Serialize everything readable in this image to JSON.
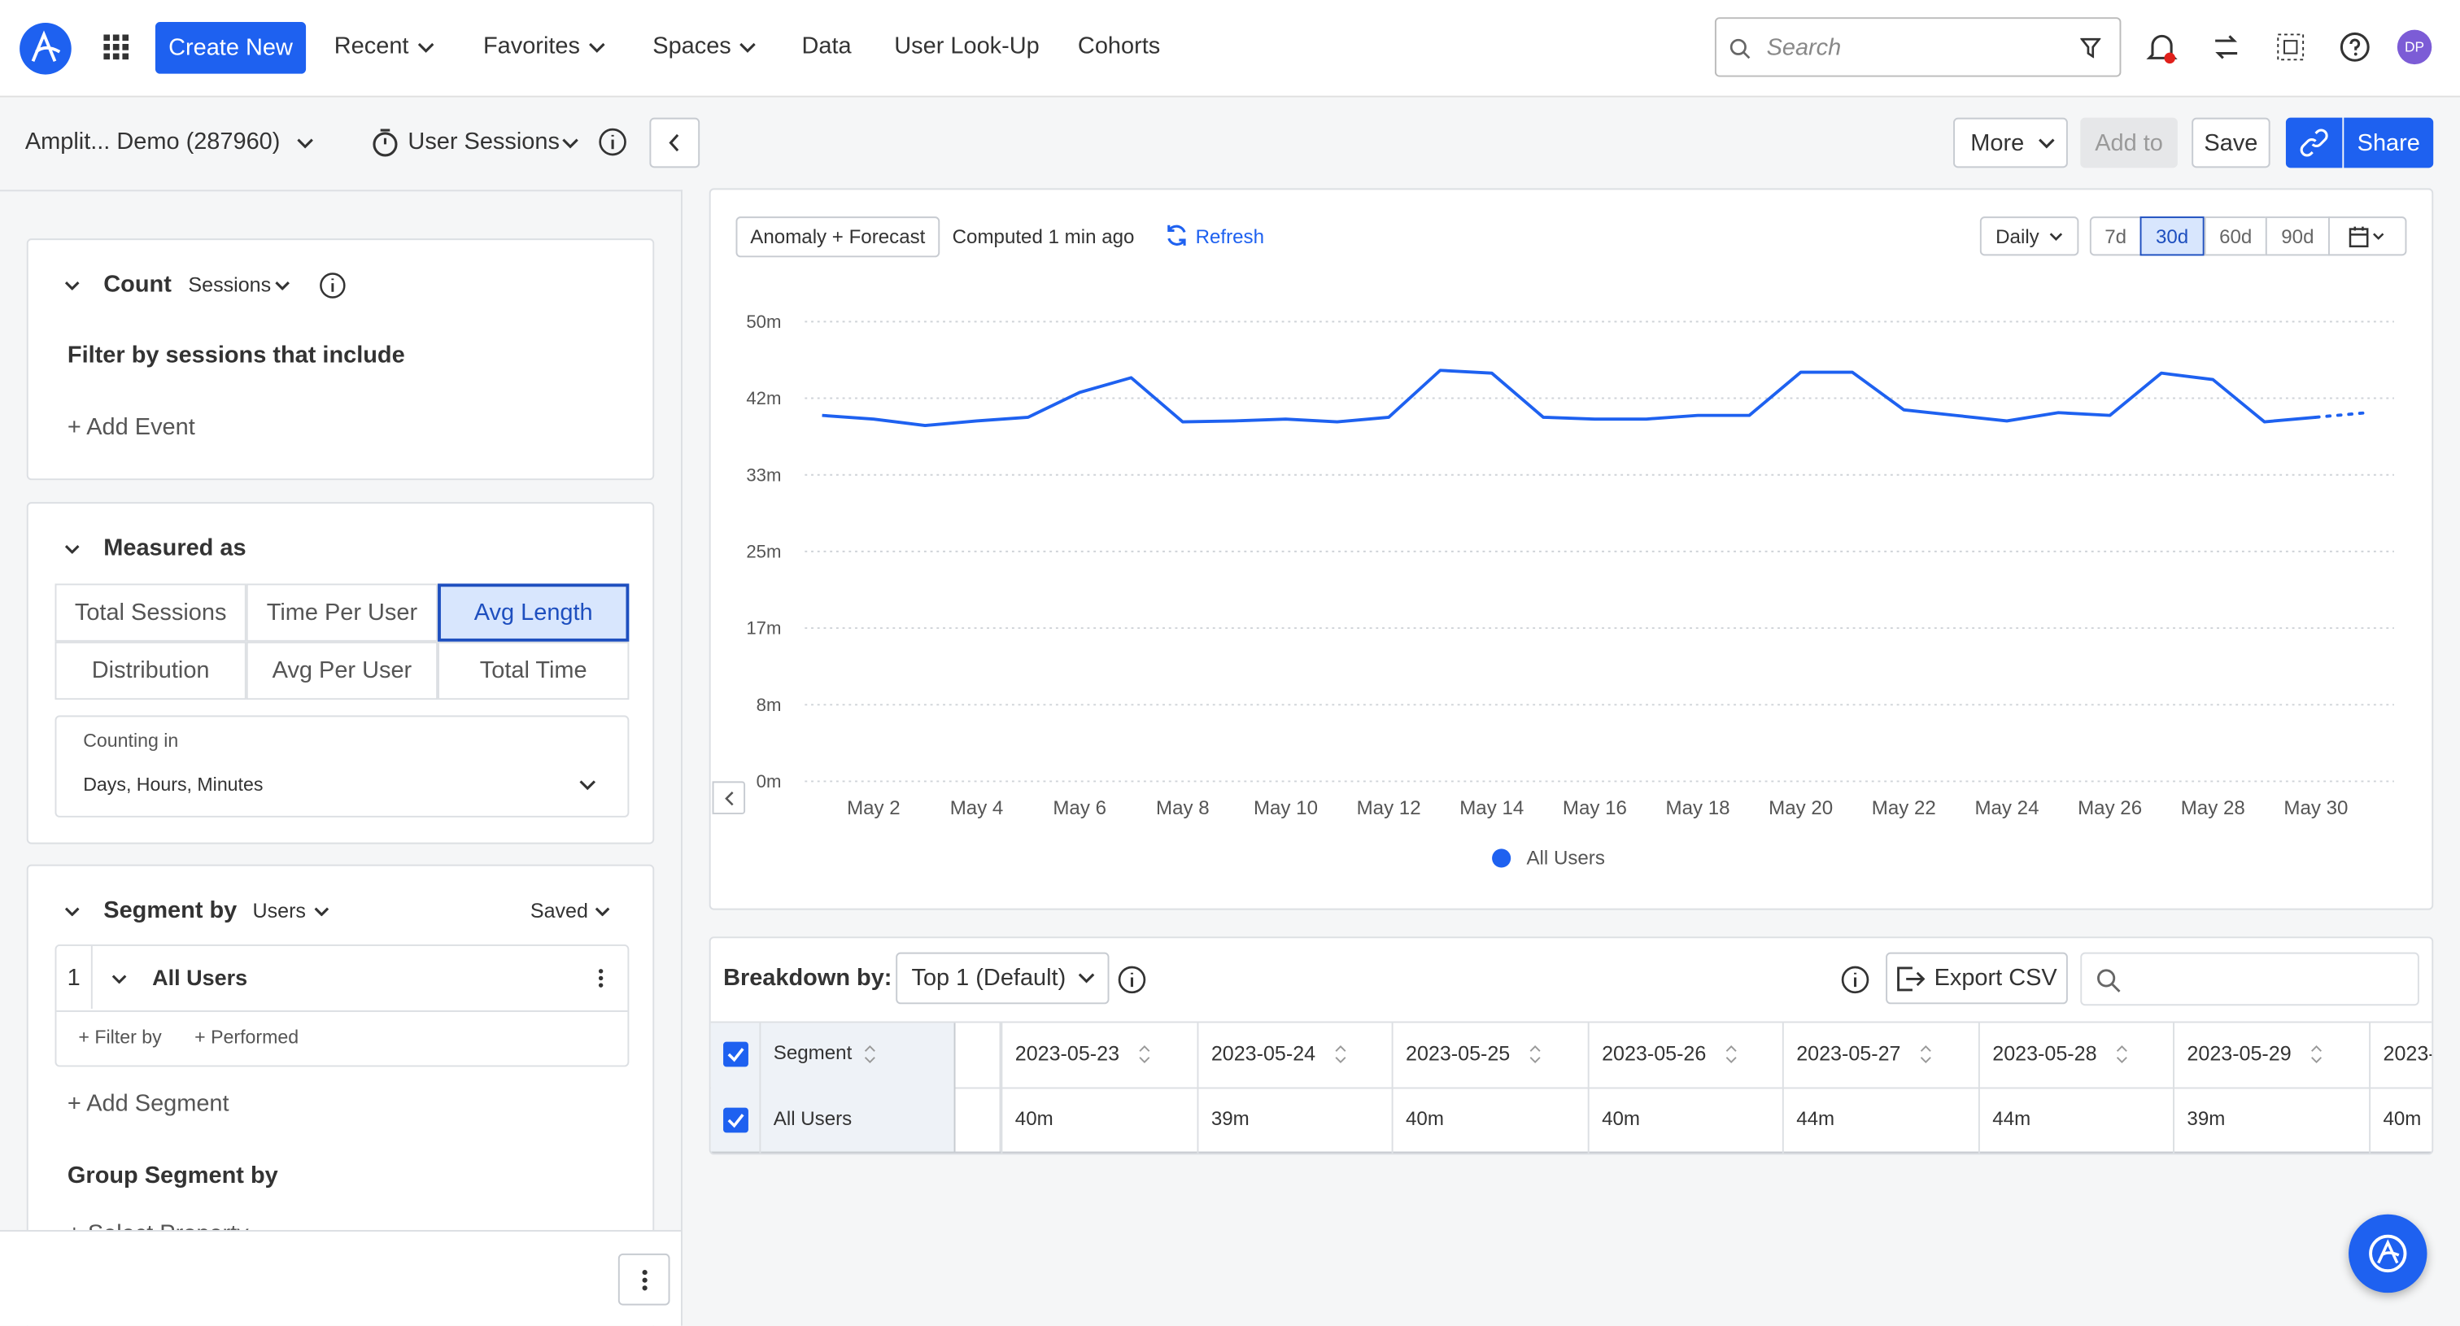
{
  "nav": {
    "items": [
      "Create New",
      "Recent",
      "Favorites",
      "Spaces",
      "Data",
      "User Look-Up",
      "Cohorts"
    ],
    "search_placeholder": "Search",
    "avatar": "DP"
  },
  "toolbar": {
    "project": "Amplit... Demo (287960)",
    "metric": "User Sessions",
    "buttons": [
      "More",
      "Add to",
      "Save",
      "Share"
    ]
  },
  "sidebar": {
    "count": {
      "title": "Count",
      "unit": "Sessions",
      "filter_title": "Filter by sessions that include",
      "add_event": "+ Add Event"
    },
    "measured": {
      "title": "Measured as",
      "options": [
        "Total Sessions",
        "Time Per User",
        "Avg Length",
        "Distribution",
        "Avg Per User",
        "Total Time"
      ],
      "counting_label": "Counting in",
      "counting_value": "Days, Hours, Minutes"
    },
    "segment": {
      "title": "Segment by",
      "unit": "Users",
      "saved": "Saved",
      "index": "1",
      "name": "All Users",
      "filter": "+ Filter by",
      "performed": "+ Performed",
      "add": "+ Add Segment",
      "group_title": "Group Segment by",
      "select": "+ Select Property"
    }
  },
  "chart_controls": {
    "anomaly": "Anomaly + Forecast",
    "computed": "Computed 1 min ago",
    "refresh": "Refresh",
    "interval": "Daily",
    "ranges": [
      "7d",
      "30d",
      "60d",
      "90d"
    ]
  },
  "chart_data": {
    "type": "line",
    "categories": [
      null,
      "May 2",
      null,
      "May 4",
      null,
      "May 6",
      null,
      "May 8",
      null,
      "May 10",
      null,
      "May 12",
      null,
      "May 14",
      null,
      "May 16",
      null,
      "May 18",
      null,
      "May 20",
      null,
      "May 22",
      null,
      "May 24",
      null,
      "May 26",
      null,
      "May 28",
      null,
      "May 30",
      null
    ],
    "series": [
      {
        "name": "All Users",
        "color": "#1e61f0",
        "values": [
          39.8,
          39.4,
          38.7,
          39.2,
          39.6,
          42.3,
          43.9,
          39.1,
          39.2,
          39.4,
          39.1,
          39.6,
          44.7,
          44.4,
          39.6,
          39.4,
          39.4,
          39.8,
          39.8,
          44.5,
          44.5,
          40.4,
          39.8,
          39.2,
          40.1,
          39.8,
          44.4,
          43.7,
          39.1,
          39.6,
          40.1
        ],
        "forecast_start": 29
      }
    ],
    "ylim": [
      0,
      50
    ],
    "yticks": [
      {
        "value": 0,
        "label": "0m"
      },
      {
        "value": 8.33,
        "label": "8m"
      },
      {
        "value": 16.67,
        "label": "17m"
      },
      {
        "value": 25,
        "label": "25m"
      },
      {
        "value": 33.33,
        "label": "33m"
      },
      {
        "value": 41.67,
        "label": "42m"
      },
      {
        "value": 50,
        "label": "50m"
      }
    ],
    "grid": true
  },
  "breakdown": {
    "label": "Breakdown by:",
    "select": "Top 1 (Default)",
    "export": "Export CSV"
  },
  "table": {
    "columns": [
      "Segment",
      "2023-05-23",
      "2023-05-24",
      "2023-05-25",
      "2023-05-26",
      "2023-05-27",
      "2023-05-28",
      "2023-05-29",
      "2023-"
    ],
    "rows": [
      [
        "All Users",
        "40m",
        "39m",
        "40m",
        "40m",
        "44m",
        "44m",
        "39m",
        "40m"
      ]
    ]
  }
}
